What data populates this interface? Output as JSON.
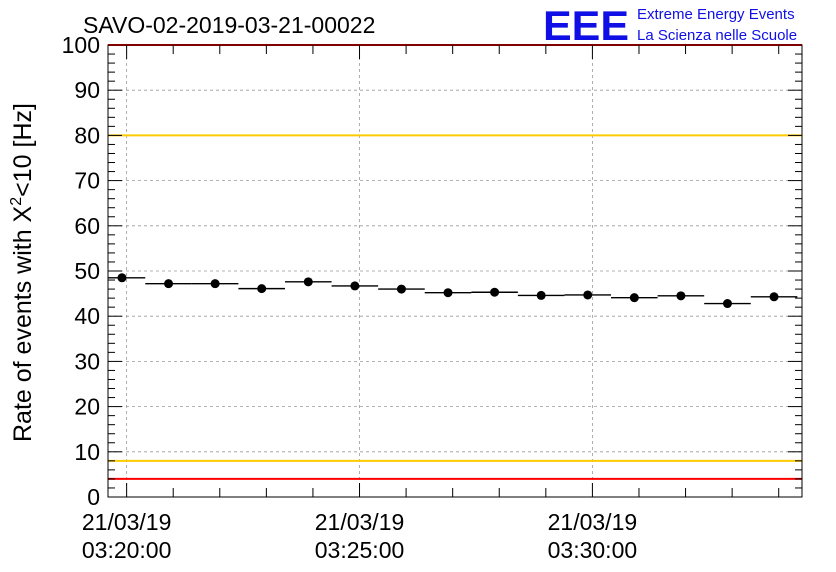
{
  "header": {
    "run_id": "SAVO-02-2019-03-21-00022",
    "logo_letters": "EEE",
    "logo_line1": "Extreme Energy Events",
    "logo_line2": "La Scienza nelle Scuole",
    "logo_color": "#1010e6"
  },
  "chart_data": {
    "type": "scatter",
    "ylabel_main": "Rate of events with X",
    "ylabel_sup": "2",
    "ylabel_tail": "<10 [Hz]",
    "xlabel": "",
    "ylim": [
      0,
      100
    ],
    "y_ticks": [
      "0",
      "10",
      "20",
      "30",
      "40",
      "50",
      "60",
      "70",
      "80",
      "90",
      "100"
    ],
    "x_tick_labels": [
      {
        "date": "21/03/19",
        "time": "03:20:00"
      },
      {
        "date": "21/03/19",
        "time": "03:25:00"
      },
      {
        "date": "21/03/19",
        "time": "03:30:00"
      }
    ],
    "grid": true,
    "time_unit": "minutes",
    "x_range_minutes": [
      19.6,
      34.5
    ],
    "x_bin_width_minutes": 1,
    "series": [
      {
        "x_minutes": [
          19.9,
          20.9,
          21.9,
          22.9,
          23.9,
          24.9,
          25.9,
          26.9,
          27.9,
          28.9,
          29.9,
          30.9,
          31.9,
          32.9,
          33.9
        ],
        "values": [
          48.5,
          47.2,
          47.2,
          46.1,
          47.6,
          46.7,
          46.0,
          45.2,
          45.3,
          44.6,
          44.7,
          44.1,
          44.5,
          42.8,
          44.3
        ],
        "color": "#000000"
      }
    ],
    "reference_lines": [
      {
        "y": 100,
        "color": "#ff0000"
      },
      {
        "y": 80,
        "color": "#ffcc00"
      },
      {
        "y": 8,
        "color": "#ffcc00"
      },
      {
        "y": 4,
        "color": "#ff0000"
      }
    ]
  }
}
